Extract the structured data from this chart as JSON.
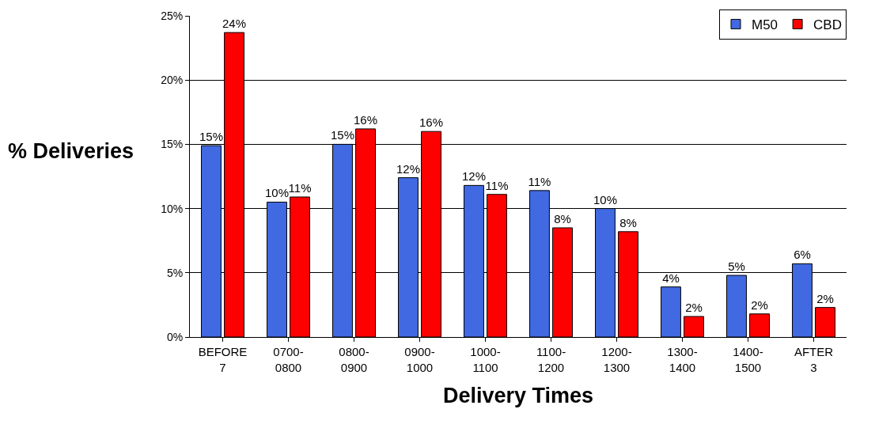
{
  "chart_data": {
    "type": "bar",
    "xlabel": "Delivery Times",
    "ylabel": "% Deliveries",
    "categories": [
      "BEFORE 7",
      "0700-0800",
      "0800-0900",
      "0900-1000",
      "1000-1100",
      "1100-1200",
      "1200-1300",
      "1300-1400",
      "1400-1500",
      "AFTER 3"
    ],
    "series": [
      {
        "name": "M50",
        "color": "#4169e1",
        "values": [
          14.9,
          10.5,
          15.0,
          12.4,
          11.8,
          11.4,
          10.0,
          3.9,
          4.8,
          5.7
        ],
        "value_labels": [
          "15%",
          "10%",
          "15%",
          "12%",
          "12%",
          "11%",
          "10%",
          "4%",
          "5%",
          "6%"
        ]
      },
      {
        "name": "CBD",
        "color": "#ff0000",
        "values": [
          23.7,
          10.9,
          16.2,
          16.0,
          11.1,
          8.5,
          8.2,
          1.6,
          1.8,
          2.3
        ],
        "value_labels": [
          "24%",
          "11%",
          "16%",
          "16%",
          "11%",
          "8%",
          "8%",
          "2%",
          "2%",
          "2%"
        ]
      }
    ],
    "ylim": [
      0,
      25
    ],
    "yticks": [
      {
        "value": 0,
        "label": "0%"
      },
      {
        "value": 5,
        "label": "5%"
      },
      {
        "value": 10,
        "label": "10%"
      },
      {
        "value": 15,
        "label": "15%"
      },
      {
        "value": 20,
        "label": "20%"
      },
      {
        "value": 25,
        "label": "25%"
      }
    ],
    "grid": "y",
    "legend": "top right"
  }
}
